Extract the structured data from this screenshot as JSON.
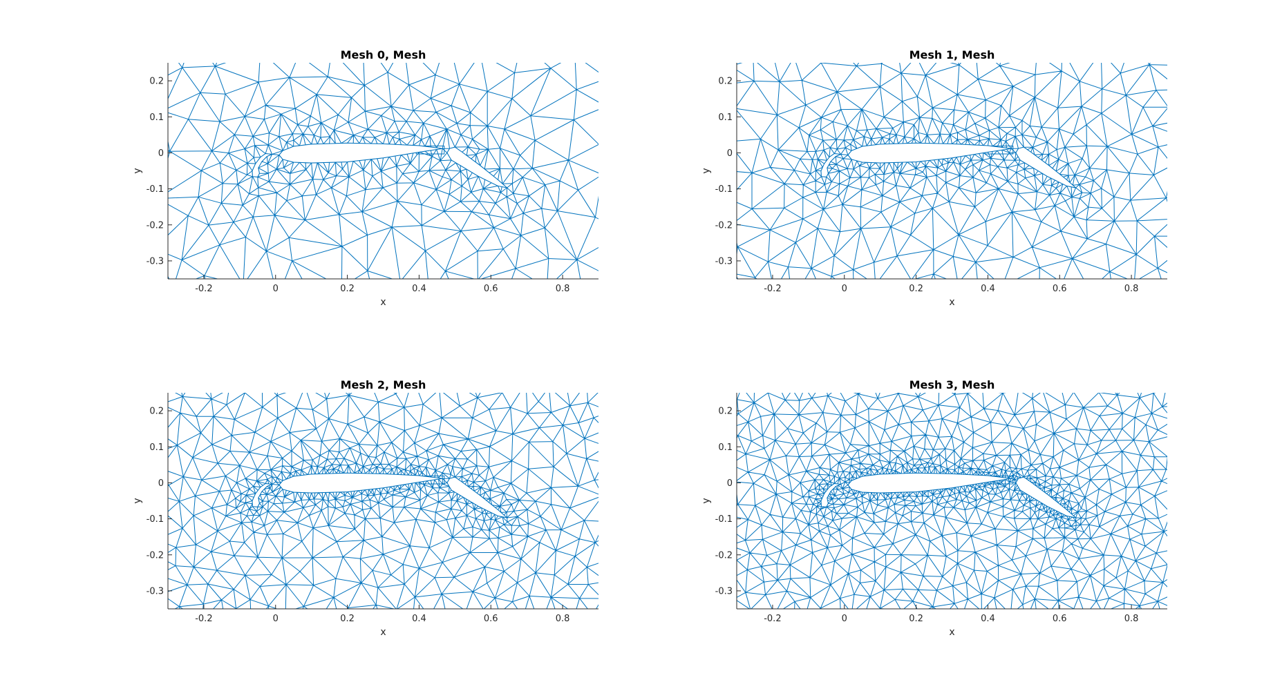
{
  "figure": {
    "background": "#ffffff",
    "mesh_color": "#0072bd",
    "axis_color": "#262626"
  },
  "chart_data": [
    {
      "type": "mesh",
      "title": "Mesh 0, Mesh",
      "xlabel": "x",
      "ylabel": "y",
      "xlim": [
        -0.3,
        0.9
      ],
      "ylim": [
        -0.35,
        0.25
      ],
      "xticks": [
        -0.2,
        0,
        0.2,
        0.4,
        0.6,
        0.8
      ],
      "xtick_labels": [
        "-0.2",
        "0",
        "0.2",
        "0.4",
        "0.6",
        "0.8"
      ],
      "yticks": [
        -0.3,
        -0.2,
        -0.1,
        0,
        0.1,
        0.2
      ],
      "ytick_labels": [
        "-0.3",
        "-0.2",
        "-0.1",
        "0",
        "0.1",
        "0.2"
      ],
      "grid": false,
      "refinement_level": 0
    },
    {
      "type": "mesh",
      "title": "Mesh 1, Mesh",
      "xlabel": "x",
      "ylabel": "y",
      "xlim": [
        -0.3,
        0.9
      ],
      "ylim": [
        -0.35,
        0.25
      ],
      "xticks": [
        -0.2,
        0,
        0.2,
        0.4,
        0.6,
        0.8
      ],
      "xtick_labels": [
        "-0.2",
        "0",
        "0.2",
        "0.4",
        "0.6",
        "0.8"
      ],
      "yticks": [
        -0.3,
        -0.2,
        -0.1,
        0,
        0.1,
        0.2
      ],
      "ytick_labels": [
        "-0.3",
        "-0.2",
        "-0.1",
        "0",
        "0.1",
        "0.2"
      ],
      "grid": false,
      "refinement_level": 1
    },
    {
      "type": "mesh",
      "title": "Mesh 2, Mesh",
      "xlabel": "x",
      "ylabel": "y",
      "xlim": [
        -0.3,
        0.9
      ],
      "ylim": [
        -0.35,
        0.25
      ],
      "xticks": [
        -0.2,
        0,
        0.2,
        0.4,
        0.6,
        0.8
      ],
      "xtick_labels": [
        "-0.2",
        "0",
        "0.2",
        "0.4",
        "0.6",
        "0.8"
      ],
      "yticks": [
        -0.3,
        -0.2,
        -0.1,
        0,
        0.1,
        0.2
      ],
      "ytick_labels": [
        "-0.3",
        "-0.2",
        "-0.1",
        "0",
        "0.1",
        "0.2"
      ],
      "grid": false,
      "refinement_level": 2
    },
    {
      "type": "mesh",
      "title": "Mesh 3, Mesh",
      "xlabel": "x",
      "ylabel": "y",
      "xlim": [
        -0.3,
        0.9
      ],
      "ylim": [
        -0.35,
        0.25
      ],
      "xticks": [
        -0.2,
        0,
        0.2,
        0.4,
        0.6,
        0.8
      ],
      "xtick_labels": [
        "-0.2",
        "0",
        "0.2",
        "0.4",
        "0.6",
        "0.8"
      ],
      "yticks": [
        -0.3,
        -0.2,
        -0.1,
        0,
        0.1,
        0.2
      ],
      "ytick_labels": [
        "-0.3",
        "-0.2",
        "-0.1",
        "0",
        "0.1",
        "0.2"
      ],
      "grid": false,
      "refinement_level": 3
    }
  ],
  "geometry": {
    "slat": [
      [
        -0.028,
        -0.002
      ],
      [
        -0.042,
        -0.012
      ],
      [
        -0.056,
        -0.03
      ],
      [
        -0.065,
        -0.05
      ],
      [
        -0.064,
        -0.066
      ],
      [
        -0.05,
        -0.067
      ],
      [
        -0.045,
        -0.057
      ],
      [
        -0.048,
        -0.042
      ],
      [
        -0.038,
        -0.024
      ],
      [
        -0.024,
        -0.01
      ],
      [
        -0.01,
        -0.004
      ]
    ],
    "main": [
      [
        0.01,
        -0.006
      ],
      [
        0.02,
        0.006
      ],
      [
        0.05,
        0.018
      ],
      [
        0.1,
        0.024
      ],
      [
        0.2,
        0.027
      ],
      [
        0.3,
        0.025
      ],
      [
        0.4,
        0.02
      ],
      [
        0.465,
        0.012
      ],
      [
        0.4,
        0.002
      ],
      [
        0.3,
        -0.014
      ],
      [
        0.2,
        -0.025
      ],
      [
        0.1,
        -0.028
      ],
      [
        0.05,
        -0.026
      ],
      [
        0.02,
        -0.018
      ]
    ],
    "cove": [
      [
        0.392,
        0.019
      ],
      [
        0.47,
        0.019
      ],
      [
        0.47,
        -0.003
      ],
      [
        0.392,
        -0.003
      ]
    ],
    "flap": [
      [
        0.485,
        0.012
      ],
      [
        0.5,
        0.016
      ],
      [
        0.52,
        0.002
      ],
      [
        0.57,
        -0.035
      ],
      [
        0.62,
        -0.075
      ],
      [
        0.645,
        -0.097
      ],
      [
        0.62,
        -0.092
      ],
      [
        0.565,
        -0.065
      ],
      [
        0.515,
        -0.035
      ],
      [
        0.49,
        -0.02
      ],
      [
        0.478,
        0.0
      ]
    ]
  }
}
